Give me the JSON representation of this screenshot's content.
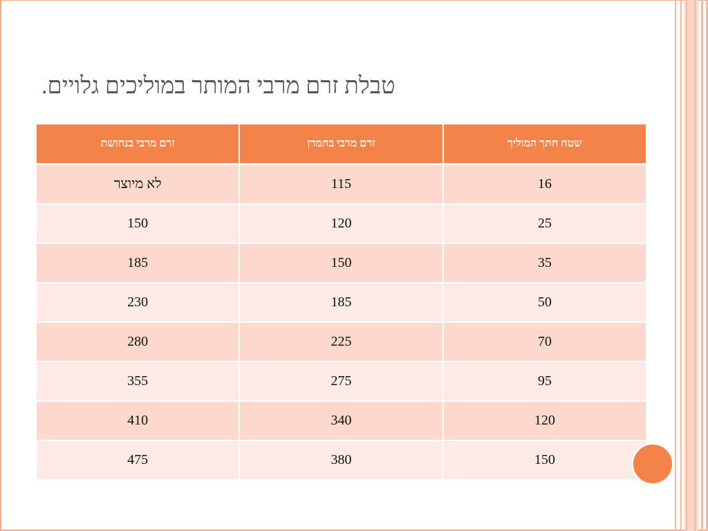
{
  "slide": {
    "title": "טבלת זרם מרבי המותר במוליכים גלויים."
  },
  "table": {
    "headers": [
      "שטח חתך המוליך",
      "זרם מרבי בחמרן",
      "זרם מרבי בנחושת"
    ],
    "rows": [
      [
        "16",
        "115",
        "לא מיוצר"
      ],
      [
        "25",
        "120",
        "150"
      ],
      [
        "35",
        "150",
        "185"
      ],
      [
        "50",
        "185",
        "230"
      ],
      [
        "70",
        "225",
        "280"
      ],
      [
        "95",
        "275",
        "355"
      ],
      [
        "120",
        "340",
        "410"
      ],
      [
        "150",
        "380",
        "475"
      ]
    ]
  },
  "colors": {
    "header_bg": "#f4834a",
    "row_odd": "#fcd8cd",
    "row_even": "#fdeae6",
    "frame": "#f4a98a"
  }
}
